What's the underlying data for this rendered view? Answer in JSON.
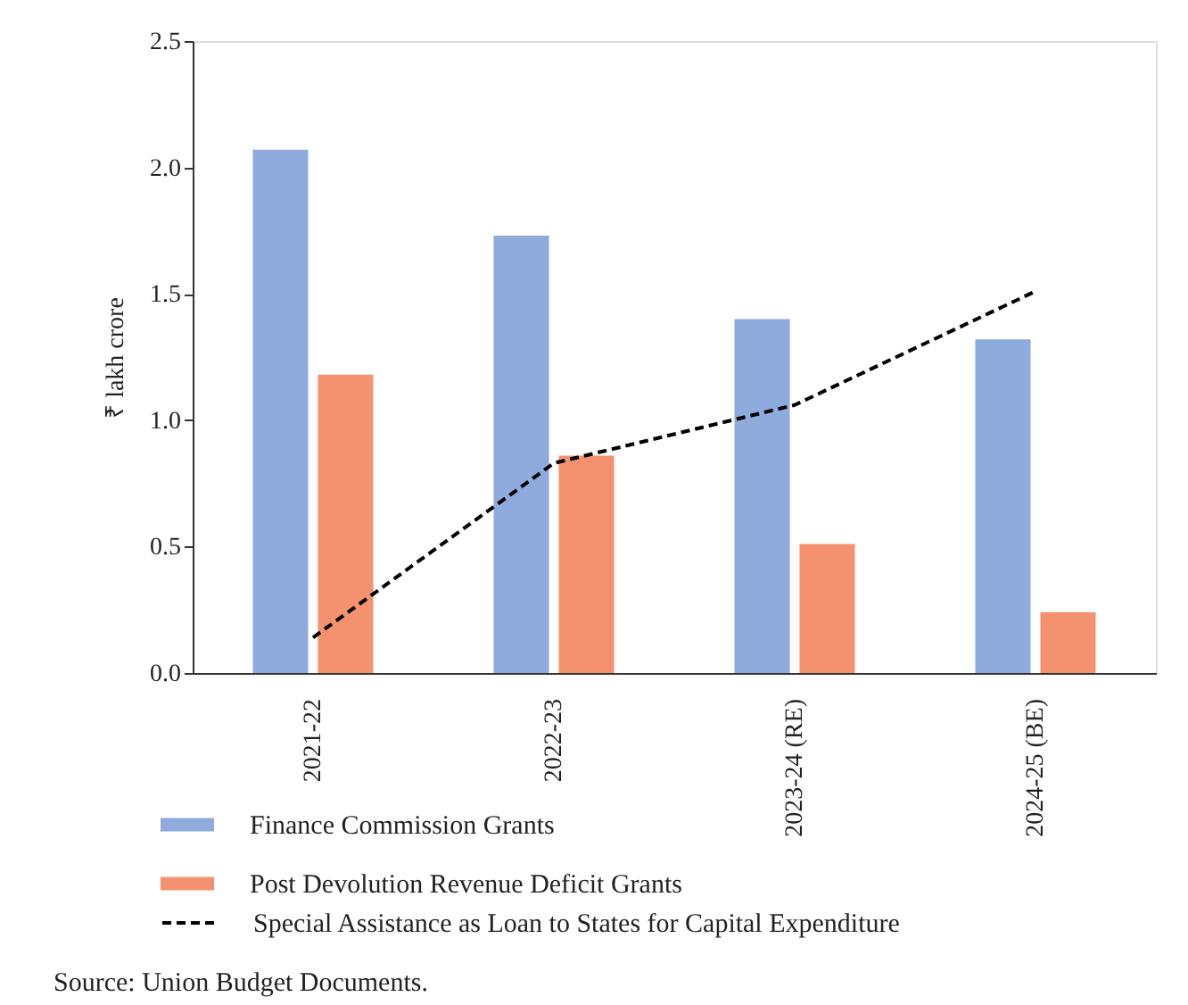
{
  "chart_data": {
    "type": "bar",
    "categories": [
      "2021-22",
      "2022-23",
      "2023-24 (RE)",
      "2024-25 (BE)"
    ],
    "ylabel": "₹ lakh crore",
    "series": [
      {
        "name": "Finance Commission Grants",
        "color": "#8faadc",
        "values": [
          2.07,
          1.73,
          1.4,
          1.32
        ]
      },
      {
        "name": "Post Devolution Revenue Deficit Grants",
        "color": "#f4926f",
        "values": [
          1.18,
          0.86,
          0.51,
          0.24
        ]
      },
      {
        "name": "Special Assistance as Loan to States for Capital Expenditure",
        "type": "line",
        "line_style": "dashed",
        "color": "#000000",
        "values": [
          0.14,
          0.83,
          1.06,
          1.51
        ]
      }
    ],
    "ylim": [
      0,
      2.5
    ],
    "yticks": [
      {
        "value": 0,
        "label": "0.0"
      },
      {
        "value": 0.5,
        "label": "0.5"
      },
      {
        "value": 1,
        "label": "1.0"
      },
      {
        "value": 1.5,
        "label": "1.5"
      },
      {
        "value": 2,
        "label": "2.0"
      },
      {
        "value": 2.5,
        "label": "2.5"
      }
    ],
    "grid": false,
    "legend": "bottom",
    "annotations": [
      "Source: Union Budget Documents."
    ]
  }
}
